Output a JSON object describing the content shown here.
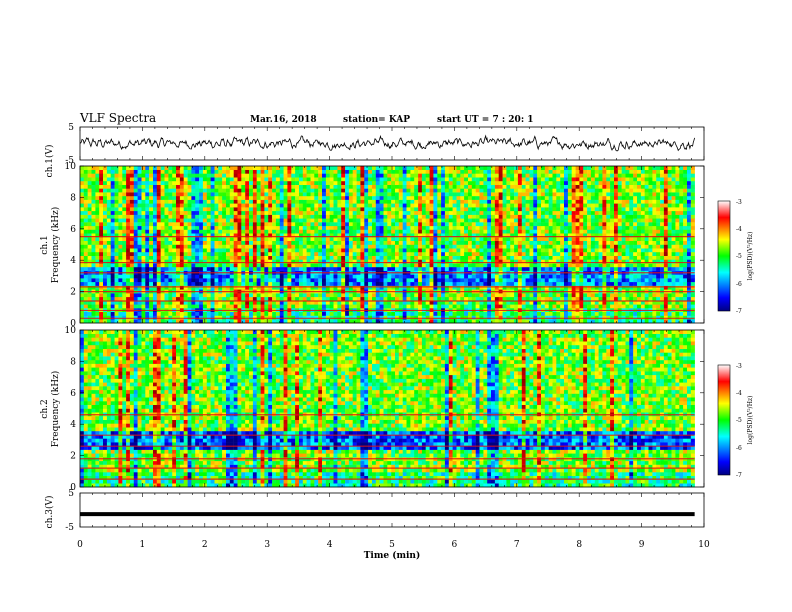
{
  "header": {
    "title": "VLF Spectra",
    "date": "Mar.16, 2018",
    "station": "station= KAP",
    "start_ut": "start  UT  =   7 : 20: 1"
  },
  "chart_data": [
    {
      "type": "line",
      "panel": "ch1-waveform",
      "ylabel": "ch.1(V)",
      "ylim": [
        -5,
        5
      ],
      "yticks": [
        "5",
        "-5"
      ],
      "xlim": [
        0,
        10
      ],
      "data_end_min": 9.85,
      "description_values": {
        "typical_range_V": [
          -1.5,
          1.8
        ]
      }
    },
    {
      "type": "heatmap",
      "panel": "ch1-spectrogram",
      "ylabel_line1": "ch.1",
      "ylabel_line2": "Frequency (kHz)",
      "ylim": [
        0,
        10
      ],
      "yticks": [
        "0",
        "2",
        "4",
        "6",
        "8",
        "10"
      ],
      "xlim": [
        0,
        10
      ],
      "data_end_min": 9.85,
      "bands_khz": [
        0.3,
        0.8,
        1.4,
        2.0,
        2.3,
        3.2,
        3.85,
        5.5
      ],
      "colorbar": {
        "label": "log(PSD)(V²/Hz)",
        "range": [
          -7,
          -3
        ],
        "ticks": [
          "-3",
          "-4",
          "-5",
          "-6",
          "-7"
        ]
      }
    },
    {
      "type": "heatmap",
      "panel": "ch2-spectrogram",
      "ylabel_line1": "ch.2",
      "ylabel_line2": "Frequency (kHz)",
      "ylim": [
        0,
        10
      ],
      "yticks": [
        "0",
        "2",
        "4",
        "6",
        "8",
        "10"
      ],
      "xlim": [
        0,
        10
      ],
      "data_end_min": 9.85,
      "bands_khz": [
        0.5,
        1.2,
        1.8,
        2.6,
        3.3,
        4.6
      ],
      "colorbar": {
        "label": "log(PSD)(V²/Hz)",
        "range": [
          -7,
          -3
        ],
        "ticks": [
          "-3",
          "-4",
          "-5",
          "-6",
          "-7"
        ]
      }
    },
    {
      "type": "line",
      "panel": "ch3-waveform",
      "ylabel": "ch.3(V)",
      "ylim": [
        -5,
        5
      ],
      "yticks": [
        "5",
        "-5"
      ],
      "xlim": [
        0,
        10
      ],
      "data_end_min": 9.85,
      "constant_value_V": -1.2
    }
  ],
  "xaxis": {
    "label": "Time (min)",
    "ticks": [
      "0",
      "1",
      "2",
      "3",
      "4",
      "5",
      "6",
      "7",
      "8",
      "9",
      "10"
    ]
  },
  "colors": {
    "line": "#000000",
    "colormap": [
      "#000080",
      "#0000ff",
      "#00ffff",
      "#00ff00",
      "#ffff00",
      "#ff0000",
      "#800000"
    ]
  }
}
